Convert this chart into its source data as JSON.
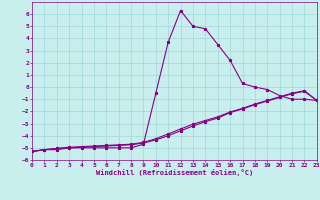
{
  "xlabel": "Windchill (Refroidissement éolien,°C)",
  "xlim": [
    0,
    23
  ],
  "ylim": [
    -6,
    7
  ],
  "xticks": [
    0,
    1,
    2,
    3,
    4,
    5,
    6,
    7,
    8,
    9,
    10,
    11,
    12,
    13,
    14,
    15,
    16,
    17,
    18,
    19,
    20,
    21,
    22,
    23
  ],
  "yticks": [
    -6,
    -5,
    -4,
    -3,
    -2,
    -1,
    0,
    1,
    2,
    3,
    4,
    5,
    6
  ],
  "bg_color": "#c8eeee",
  "grid_color": "#a0d8d8",
  "line_color": "#880088",
  "curve1_x": [
    0,
    1,
    2,
    3,
    4,
    5,
    6,
    7,
    8,
    9,
    10,
    11,
    12,
    13,
    14,
    15,
    16,
    17,
    18,
    19,
    20,
    21,
    22,
    23
  ],
  "curve1_y": [
    -5.3,
    -5.15,
    -5.15,
    -5.0,
    -5.0,
    -5.0,
    -5.0,
    -5.0,
    -5.0,
    -4.7,
    -0.5,
    3.7,
    6.3,
    5.0,
    4.8,
    3.5,
    2.2,
    0.3,
    0.0,
    -0.2,
    -0.7,
    -1.0,
    -1.0,
    -1.1
  ],
  "curve2_x": [
    0,
    1,
    2,
    3,
    4,
    5,
    6,
    7,
    8,
    9,
    10,
    11,
    12,
    13,
    14,
    15,
    16,
    17,
    18,
    19,
    20,
    21,
    22,
    23
  ],
  "curve2_y": [
    -5.3,
    -5.15,
    -5.05,
    -5.0,
    -4.95,
    -4.9,
    -4.85,
    -4.8,
    -4.75,
    -4.6,
    -4.35,
    -4.0,
    -3.6,
    -3.2,
    -2.85,
    -2.55,
    -2.1,
    -1.8,
    -1.45,
    -1.15,
    -0.85,
    -0.55,
    -0.35,
    -1.1
  ],
  "curve3_x": [
    0,
    1,
    2,
    3,
    4,
    5,
    6,
    7,
    8,
    9,
    10,
    11,
    12,
    13,
    14,
    15,
    16,
    17,
    18,
    19,
    20,
    21,
    22,
    23
  ],
  "curve3_y": [
    -5.3,
    -5.15,
    -5.05,
    -4.95,
    -4.9,
    -4.85,
    -4.8,
    -4.75,
    -4.7,
    -4.55,
    -4.25,
    -3.85,
    -3.45,
    -3.05,
    -2.75,
    -2.45,
    -2.05,
    -1.75,
    -1.4,
    -1.1,
    -0.8,
    -0.5,
    -0.3,
    -1.1
  ]
}
